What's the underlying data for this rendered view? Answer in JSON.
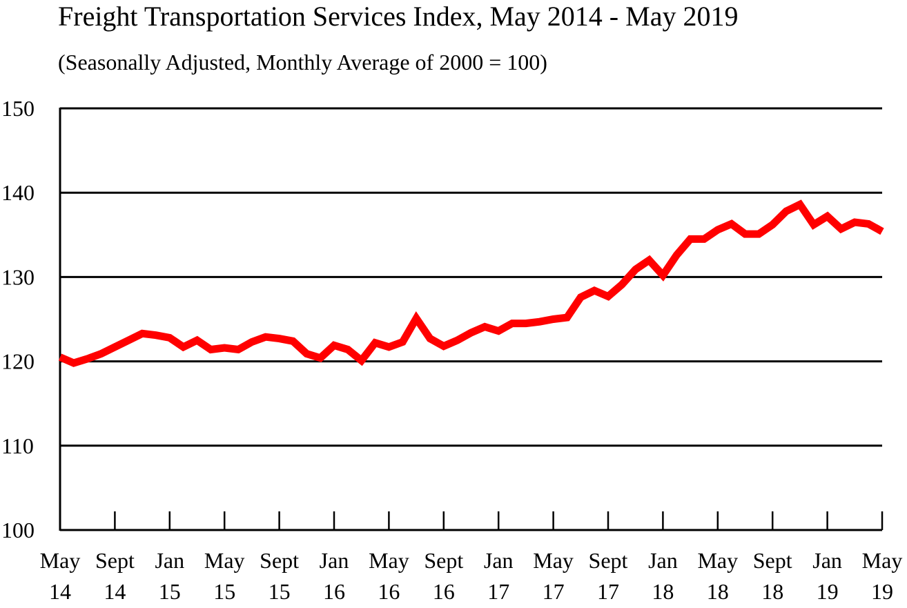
{
  "chart_data": {
    "type": "line",
    "title": "Freight Transportation Services Index, May 2014 - May 2019",
    "subtitle": "(Seasonally Adjusted, Monthly Average of 2000 = 100)",
    "xlabel": "",
    "ylabel": "",
    "ylim": [
      100,
      150
    ],
    "yticks": [
      100,
      110,
      120,
      130,
      140,
      150
    ],
    "grid": "horizontal",
    "line_color": "#ff0000",
    "xticks": [
      {
        "month": 0,
        "label": [
          "May",
          "14"
        ]
      },
      {
        "month": 4,
        "label": [
          "Sept",
          "14"
        ]
      },
      {
        "month": 8,
        "label": [
          "Jan",
          "15"
        ]
      },
      {
        "month": 12,
        "label": [
          "May",
          "15"
        ]
      },
      {
        "month": 16,
        "label": [
          "Sept",
          "15"
        ]
      },
      {
        "month": 20,
        "label": [
          "Jan",
          "16"
        ]
      },
      {
        "month": 24,
        "label": [
          "May",
          "16"
        ]
      },
      {
        "month": 28,
        "label": [
          "Sept",
          "16"
        ]
      },
      {
        "month": 32,
        "label": [
          "Jan",
          "17"
        ]
      },
      {
        "month": 36,
        "label": [
          "May",
          "17"
        ]
      },
      {
        "month": 40,
        "label": [
          "Sept",
          "17"
        ]
      },
      {
        "month": 44,
        "label": [
          "Jan",
          "18"
        ]
      },
      {
        "month": 48,
        "label": [
          "May",
          "18"
        ]
      },
      {
        "month": 52,
        "label": [
          "Sept",
          "18"
        ]
      },
      {
        "month": 56,
        "label": [
          "Jan",
          "19"
        ]
      },
      {
        "month": 60,
        "label": [
          "May",
          "19"
        ]
      }
    ],
    "x": [
      "2014-05",
      "2014-06",
      "2014-07",
      "2014-08",
      "2014-09",
      "2014-10",
      "2014-11",
      "2014-12",
      "2015-01",
      "2015-02",
      "2015-03",
      "2015-04",
      "2015-05",
      "2015-06",
      "2015-07",
      "2015-08",
      "2015-09",
      "2015-10",
      "2015-11",
      "2015-12",
      "2016-01",
      "2016-02",
      "2016-03",
      "2016-04",
      "2016-05",
      "2016-06",
      "2016-07",
      "2016-08",
      "2016-09",
      "2016-10",
      "2016-11",
      "2016-12",
      "2017-01",
      "2017-02",
      "2017-03",
      "2017-04",
      "2017-05",
      "2017-06",
      "2017-07",
      "2017-08",
      "2017-09",
      "2017-10",
      "2017-11",
      "2017-12",
      "2018-01",
      "2018-02",
      "2018-03",
      "2018-04",
      "2018-05",
      "2018-06",
      "2018-07",
      "2018-08",
      "2018-09",
      "2018-10",
      "2018-11",
      "2018-12",
      "2019-01",
      "2019-02",
      "2019-03",
      "2019-04",
      "2019-05"
    ],
    "values": [
      120.5,
      119.8,
      120.3,
      120.9,
      121.7,
      122.5,
      123.3,
      123.1,
      122.8,
      121.7,
      122.5,
      121.4,
      121.6,
      121.4,
      122.3,
      122.9,
      122.7,
      122.4,
      120.9,
      120.4,
      121.9,
      121.4,
      120.1,
      122.2,
      121.7,
      122.3,
      125.1,
      122.7,
      121.8,
      122.5,
      123.4,
      124.1,
      123.6,
      124.5,
      124.5,
      124.7,
      125.0,
      125.2,
      127.6,
      128.4,
      127.7,
      129.1,
      130.9,
      132.0,
      130.2,
      132.6,
      134.5,
      134.5,
      135.6,
      136.3,
      135.1,
      135.1,
      136.2,
      137.8,
      138.6,
      136.2,
      137.2,
      135.7,
      136.5,
      136.3,
      135.4
    ]
  }
}
